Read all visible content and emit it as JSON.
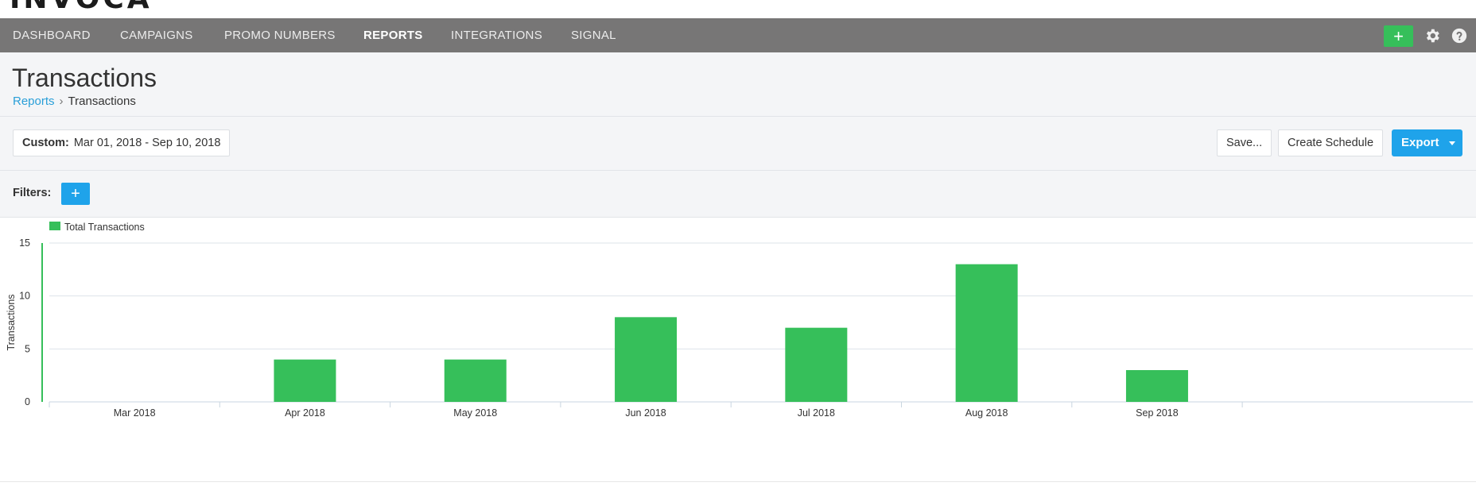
{
  "brand": {
    "name": "INVOCA"
  },
  "nav": {
    "items": [
      {
        "label": "DASHBOARD",
        "active": false
      },
      {
        "label": "CAMPAIGNS",
        "active": false
      },
      {
        "label": "PROMO NUMBERS",
        "active": false
      },
      {
        "label": "REPORTS",
        "active": true
      },
      {
        "label": "INTEGRATIONS",
        "active": false
      },
      {
        "label": "SIGNAL",
        "active": false
      }
    ],
    "add_label": "+",
    "icons": [
      "plus-icon",
      "gear-icon",
      "help-icon"
    ]
  },
  "page": {
    "title": "Transactions",
    "breadcrumb": {
      "parent": "Reports",
      "separator": "›",
      "current": "Transactions"
    }
  },
  "toolbar": {
    "date_label": "Custom:",
    "date_range": "Mar 01, 2018 - Sep 10, 2018",
    "save_label": "Save...",
    "schedule_label": "Create Schedule",
    "export_label": "Export"
  },
  "filters": {
    "label": "Filters:",
    "add_label": "+"
  },
  "colors": {
    "accent_blue": "#1fa3ea",
    "accent_green": "#36bf5a",
    "nav_bg": "#777676",
    "link": "#2a9fd8"
  },
  "chart_data": {
    "type": "bar",
    "categories": [
      "Mar 2018",
      "Apr 2018",
      "May 2018",
      "Jun 2018",
      "Jul 2018",
      "Aug 2018",
      "Sep 2018"
    ],
    "series": [
      {
        "name": "Total Transactions",
        "values": [
          0,
          4,
          4,
          8,
          7,
          13,
          3
        ],
        "color": "#36bf5a"
      }
    ],
    "ylabel": "Transactions",
    "xlabel": "",
    "ylim": [
      0,
      15
    ],
    "yticks": [
      0,
      5,
      10,
      15
    ],
    "grid": true,
    "legend": "top-left"
  }
}
